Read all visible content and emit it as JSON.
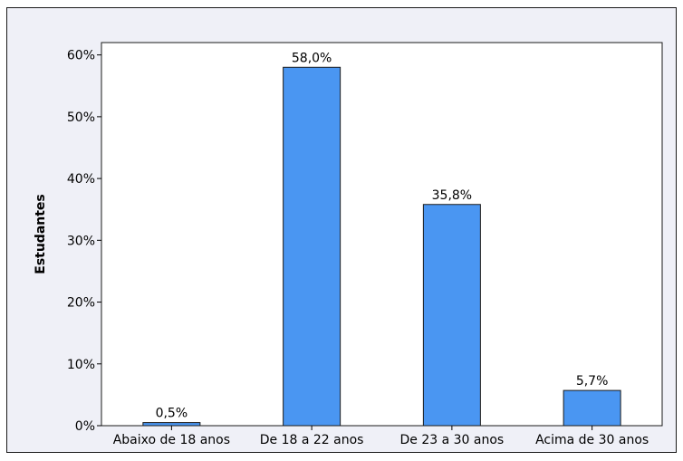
{
  "chart_data": {
    "type": "bar",
    "title": "",
    "xlabel": "",
    "ylabel": "Estudantes",
    "categories": [
      "Abaixo de 18 anos",
      "De 18 a 22 anos",
      "De 23 a 30 anos",
      "Acima de 30 anos"
    ],
    "values": [
      0.5,
      58.0,
      35.8,
      5.7
    ],
    "data_labels": [
      "0,5%",
      "58,0%",
      "35,8%",
      "5,7%"
    ],
    "yticks": [
      0,
      10,
      20,
      30,
      40,
      50,
      60
    ],
    "ytick_labels": [
      "0%",
      "10%",
      "20%",
      "30%",
      "40%",
      "50%",
      "60%"
    ],
    "ylim": [
      0,
      62
    ],
    "grid": false,
    "legend": "none",
    "colors": {
      "bar": "#4a96f2",
      "bar_outline": "#1a1a1a",
      "frame_background": "#eff0f7",
      "plot_background": "#ffffff"
    }
  }
}
